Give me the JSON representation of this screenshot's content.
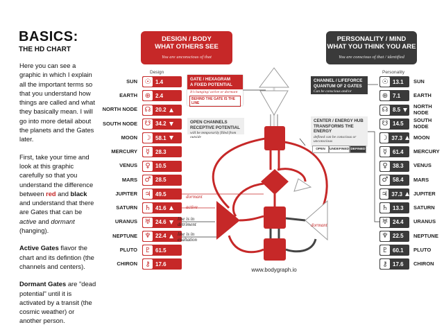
{
  "header": {
    "title": "BASICS:",
    "subtitle": "THE HD CHART"
  },
  "intro": [
    [
      {
        "text": "Here you can see a graphic in which I explain all the important terms so that you understand how things are called and what they basically mean. I will go into more detail about the planets and the Gates later.",
        "style": "plain"
      }
    ],
    [
      {
        "text": "First, take your time and look at this graphic carefully so that you understand the difference between ",
        "style": "plain"
      },
      {
        "text": "red",
        "style": "red"
      },
      {
        "text": " and ",
        "style": "plain"
      },
      {
        "text": "black",
        "style": "bold"
      },
      {
        "text": " and understand that there are Gates that can be ",
        "style": "plain"
      },
      {
        "text": "active",
        "style": "italic"
      },
      {
        "text": " and ",
        "style": "plain"
      },
      {
        "text": "dormant",
        "style": "italic"
      },
      {
        "text": " (hanging).",
        "style": "plain"
      }
    ],
    [
      {
        "text": "Active Gates",
        "style": "bold"
      },
      {
        "text": " flavor the chart and its defintion (the channels and centers).",
        "style": "plain"
      }
    ],
    [
      {
        "text": "Dormant Gates",
        "style": "bold"
      },
      {
        "text": " are \"dead potential\" until it is activated by a transit (the cosmic weather) or another person.",
        "style": "plain"
      }
    ]
  ],
  "design": {
    "title": "DESIGN / BODY",
    "subtitle": "WHAT OTHERS SEE",
    "note": "You are unconscious of that",
    "column": "Design",
    "color": "#c62828"
  },
  "personality": {
    "title": "PERSONALITY / MIND",
    "subtitle": "WHAT YOU THINK YOU ARE",
    "note": "You are conscious of that / identified",
    "column": "Personality",
    "color": "#3a3a3a"
  },
  "planets": [
    {
      "symbol": "☉",
      "name": "SUN",
      "design": "1.4",
      "personality": "13.1"
    },
    {
      "symbol": "⊕",
      "name": "EARTH",
      "design": "2.4",
      "personality": "7.1"
    },
    {
      "symbol": "☊",
      "name": "NORTH NODE",
      "design": "20.2",
      "design_mark": "up",
      "personality": "8.5",
      "personality_mark": "down"
    },
    {
      "symbol": "☋",
      "name": "SOUTH NODE",
      "design": "34.2",
      "design_mark": "down",
      "personality": "14.5"
    },
    {
      "symbol": "☽",
      "name": "MOON",
      "design": "58.1",
      "design_mark": "down",
      "personality": "37.3",
      "personality_mark": "up"
    },
    {
      "symbol": "☿",
      "name": "MERCURY",
      "design": "28.3",
      "personality": "61.4"
    },
    {
      "symbol": "♀",
      "name": "VENUS",
      "design": "10.5",
      "personality": "38.3"
    },
    {
      "symbol": "♂",
      "name": "MARS",
      "design": "28.5",
      "personality": "58.4"
    },
    {
      "symbol": "♃",
      "name": "JUPITER",
      "design": "49.5",
      "personality": "37.3",
      "personality_mark": "up"
    },
    {
      "symbol": "♄",
      "name": "SATURN",
      "design": "41.6",
      "design_mark": "up",
      "personality": "13.3"
    },
    {
      "symbol": "♅",
      "name": "URANUS",
      "design": "24.6",
      "design_mark": "down",
      "personality": "24.4"
    },
    {
      "symbol": "♆",
      "name": "NEPTUNE",
      "design": "22.4",
      "design_mark": "up",
      "personality": "22.5"
    },
    {
      "symbol": "♇",
      "name": "PLUTO",
      "design": "61.5",
      "personality": "60.1"
    },
    {
      "symbol": "⚷",
      "name": "CHIRON",
      "design": "17.6",
      "personality": "17.6"
    }
  ],
  "annotations": {
    "gate": {
      "title": "GATE / HEXAGRAM",
      "subtitle": "A FIXED POTENTIAL",
      "note": "It's hanging/ active or dormant",
      "line": "BEHIND THE GATE IS THE LINE"
    },
    "open_channels": {
      "title": "OPEN CHANNELS",
      "subtitle": "RECEPTIVE POTENTIAL",
      "note": "will be temporarily filled from outside"
    },
    "channel": {
      "title": "CHANNEL / LIFEFORCE",
      "subtitle": "QUANTUM OF 2 GATES",
      "note": "Can be conscious and/or unconscious"
    },
    "center": {
      "title": "CENTER / ENERGY HUB",
      "subtitle": "TRANSFORMS THE ENERGY",
      "note": "defined can be conscious or unconscious",
      "states": [
        "OPEN",
        "UNDEFINED",
        "DEFINED"
      ]
    },
    "side": {
      "dormant_left": "dormant",
      "active": "active",
      "detriment": "line is in detriment",
      "exaltation": "line is in exaltation",
      "dormant_right": "dormant"
    }
  },
  "footer": {
    "url": "www.bodygraph.io"
  }
}
